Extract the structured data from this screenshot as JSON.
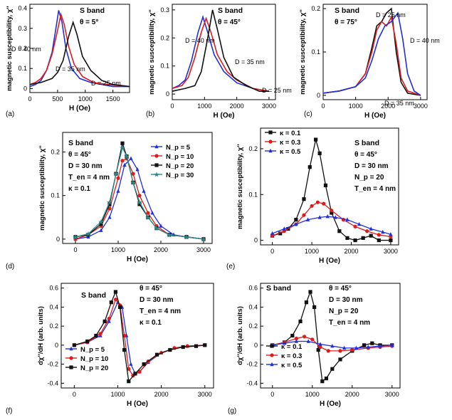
{
  "chart_data": [
    {
      "id": "a",
      "panel_label": "(a)",
      "type": "line",
      "title": "S band",
      "params": [
        "θ = 5°"
      ],
      "xlabel": "H (Oe)",
      "ylabel": "magnetic susceptibility, χ''",
      "xlim": [
        0,
        1800
      ],
      "ylim": [
        -0.02,
        0.42
      ],
      "xticks": [
        0,
        500,
        1000,
        1500
      ],
      "yticks": [
        0.0,
        0.1,
        0.2,
        0.3,
        0.4
      ],
      "annotations": [
        "D = 40 nm",
        "D = 35 nm",
        "D = 25 nm"
      ],
      "series": [
        {
          "name": "D = 40 nm",
          "color": "#1f2fe0",
          "x": [
            0,
            100,
            200,
            300,
            400,
            470,
            520,
            580,
            650,
            750,
            900,
            1100,
            1300,
            1500,
            1800
          ],
          "y": [
            0.01,
            0.02,
            0.04,
            0.09,
            0.18,
            0.3,
            0.39,
            0.33,
            0.2,
            0.1,
            0.05,
            0.03,
            0.02,
            0.01,
            0.01
          ]
        },
        {
          "name": "D = 35 nm",
          "color": "#e01b1b",
          "x": [
            0,
            100,
            200,
            300,
            400,
            500,
            560,
            620,
            700,
            800,
            950,
            1150,
            1400,
            1800
          ],
          "y": [
            0.02,
            0.03,
            0.05,
            0.09,
            0.17,
            0.29,
            0.37,
            0.32,
            0.21,
            0.12,
            0.06,
            0.03,
            0.02,
            0.01
          ]
        },
        {
          "name": "D = 25 nm",
          "color": "#111111",
          "x": [
            0,
            200,
            400,
            500,
            600,
            700,
            780,
            850,
            950,
            1100,
            1300,
            1500,
            1800
          ],
          "y": [
            0.02,
            0.03,
            0.05,
            0.08,
            0.14,
            0.26,
            0.33,
            0.27,
            0.16,
            0.09,
            0.04,
            0.02,
            0.01
          ]
        }
      ]
    },
    {
      "id": "b",
      "panel_label": "(b)",
      "type": "line",
      "title": "S band",
      "params": [
        "θ = 45°"
      ],
      "xlabel": "H (Oe)",
      "ylabel": "magnetic susceptibility, χ''",
      "xlim": [
        0,
        3200
      ],
      "ylim": [
        -0.02,
        0.32
      ],
      "xticks": [
        0,
        1000,
        2000,
        3000
      ],
      "yticks": [
        0.0,
        0.1,
        0.2,
        0.3
      ],
      "annotations": [
        "D = 40 nm",
        "D = 35 nm",
        "D = 25 nm"
      ],
      "series": [
        {
          "name": "D = 40 nm",
          "color": "#1f2fe0",
          "x": [
            0,
            200,
            400,
            600,
            800,
            950,
            1100,
            1300,
            1600,
            2000,
            2500,
            3000
          ],
          "y": [
            0.02,
            0.03,
            0.05,
            0.12,
            0.22,
            0.275,
            0.22,
            0.14,
            0.08,
            0.04,
            0.02,
            0.01
          ]
        },
        {
          "name": "D = 35 nm",
          "color": "#e01b1b",
          "x": [
            0,
            300,
            500,
            700,
            900,
            1050,
            1200,
            1400,
            1700,
            2000,
            2500,
            3000
          ],
          "y": [
            0.02,
            0.03,
            0.06,
            0.13,
            0.22,
            0.27,
            0.22,
            0.14,
            0.08,
            0.05,
            0.02,
            0.01
          ]
        },
        {
          "name": "D = 25 nm",
          "color": "#111111",
          "x": [
            0,
            400,
            700,
            900,
            1100,
            1250,
            1400,
            1600,
            1900,
            2300,
            2700,
            3000
          ],
          "y": [
            0.01,
            0.02,
            0.03,
            0.08,
            0.2,
            0.3,
            0.23,
            0.13,
            0.06,
            0.03,
            0.01,
            0.01
          ]
        }
      ]
    },
    {
      "id": "c",
      "panel_label": "(c)",
      "type": "line",
      "title": "S band",
      "params": [
        "θ = 75°"
      ],
      "xlabel": "H (Oe)",
      "ylabel": "magnetic susceptibility, χ''",
      "xlim": [
        0,
        3200
      ],
      "ylim": [
        -0.01,
        0.21
      ],
      "xticks": [
        0,
        1000,
        2000,
        3000
      ],
      "yticks": [
        0.0,
        0.1,
        0.2
      ],
      "annotations": [
        "D = 25 nm",
        "D = 40 nm",
        "D = 35 nm"
      ],
      "series": [
        {
          "name": "D = 25 nm",
          "color": "#111111",
          "x": [
            0,
            500,
            1000,
            1300,
            1500,
            1650,
            1800,
            1950,
            2100,
            2250,
            2400,
            2600,
            3000
          ],
          "y": [
            0.005,
            0.01,
            0.02,
            0.05,
            0.11,
            0.16,
            0.17,
            0.19,
            0.2,
            0.1,
            0.03,
            0.005,
            0.0
          ]
        },
        {
          "name": "D = 35 nm",
          "color": "#e01b1b",
          "x": [
            0,
            500,
            1000,
            1300,
            1500,
            1650,
            1800,
            1950,
            2100,
            2250,
            2400,
            2600,
            3000
          ],
          "y": [
            0.005,
            0.01,
            0.02,
            0.05,
            0.1,
            0.15,
            0.17,
            0.16,
            0.18,
            0.12,
            0.04,
            0.01,
            0.0
          ]
        },
        {
          "name": "D = 40 nm",
          "color": "#1f2fe0",
          "x": [
            0,
            500,
            1000,
            1300,
            1500,
            1700,
            1900,
            2100,
            2300,
            2450,
            2600,
            2800,
            3000
          ],
          "y": [
            0.005,
            0.01,
            0.02,
            0.04,
            0.08,
            0.13,
            0.16,
            0.17,
            0.19,
            0.13,
            0.05,
            0.01,
            0.0
          ]
        }
      ]
    },
    {
      "id": "d",
      "panel_label": "(d)",
      "type": "scatter",
      "title": "S band",
      "params": [
        "θ = 45°",
        "D = 30 nm",
        "T_en = 4 nm",
        "κ = 0.1"
      ],
      "xlabel": "H (Oe)",
      "ylabel": "magnetic susceptibility, χ''",
      "xlim": [
        -300,
        3200
      ],
      "ylim": [
        -0.01,
        0.245
      ],
      "xticks": [
        0,
        1000,
        2000,
        3000
      ],
      "yticks": [
        0.0,
        0.1,
        0.2
      ],
      "legend_position": "top-right",
      "series": [
        {
          "name": "N_p = 5",
          "color": "#1f2fe0",
          "marker": "triangle",
          "x": [
            0,
            300,
            600,
            800,
            1000,
            1150,
            1300,
            1450,
            1600,
            1800,
            2000,
            2300,
            2600,
            3000
          ],
          "y": [
            0.0,
            0.005,
            0.02,
            0.05,
            0.11,
            0.17,
            0.185,
            0.16,
            0.11,
            0.06,
            0.03,
            0.01,
            0.005,
            0.0
          ]
        },
        {
          "name": "N_p = 10",
          "color": "#e01b1b",
          "marker": "circle",
          "x": [
            0,
            300,
            600,
            800,
            1000,
            1100,
            1200,
            1350,
            1500,
            1700,
            1900,
            2200,
            2600,
            3000
          ],
          "y": [
            0.0,
            0.01,
            0.03,
            0.07,
            0.14,
            0.18,
            0.185,
            0.15,
            0.1,
            0.06,
            0.03,
            0.01,
            0.005,
            0.0
          ]
        },
        {
          "name": "N_p = 20",
          "color": "#111111",
          "marker": "square",
          "x": [
            0,
            300,
            600,
            800,
            950,
            1100,
            1200,
            1350,
            1500,
            1700,
            1900,
            2200,
            2600,
            3000
          ],
          "y": [
            0.005,
            0.01,
            0.035,
            0.08,
            0.15,
            0.22,
            0.19,
            0.13,
            0.08,
            0.05,
            0.025,
            0.01,
            0.005,
            0.0
          ]
        },
        {
          "name": "N_p = 30",
          "color": "#2a8a8a",
          "marker": "star",
          "x": [
            0,
            300,
            600,
            800,
            950,
            1100,
            1200,
            1350,
            1500,
            1700,
            1900,
            2200,
            2600,
            3000
          ],
          "y": [
            0.005,
            0.012,
            0.04,
            0.085,
            0.15,
            0.21,
            0.19,
            0.13,
            0.085,
            0.05,
            0.025,
            0.01,
            0.005,
            0.0
          ]
        }
      ]
    },
    {
      "id": "e",
      "panel_label": "(e)",
      "type": "scatter",
      "title": "S band",
      "params": [
        "θ = 45°",
        "D = 30 nm",
        "N_p = 20",
        "T_en = 4 nm"
      ],
      "xlabel": "H (Oe)",
      "ylabel": "magnetic susceptibility, χ''",
      "xlim": [
        -300,
        3200
      ],
      "ylim": [
        -0.01,
        0.245
      ],
      "xticks": [
        0,
        1000,
        2000,
        3000
      ],
      "yticks": [
        0.0,
        0.1,
        0.2
      ],
      "legend_position": "top-left",
      "series": [
        {
          "name": "κ = 0.1",
          "color": "#111111",
          "marker": "square",
          "x": [
            0,
            200,
            400,
            600,
            800,
            950,
            1100,
            1200,
            1350,
            1500,
            1700,
            1900,
            2100,
            2300,
            2500,
            2700,
            3000
          ],
          "y": [
            0.01,
            0.015,
            0.025,
            0.045,
            0.09,
            0.16,
            0.22,
            0.19,
            0.12,
            0.06,
            0.02,
            0.005,
            0.0,
            0.005,
            0.01,
            0.0,
            0.0
          ]
        },
        {
          "name": "κ = 0.3",
          "color": "#e01b1b",
          "marker": "circle",
          "x": [
            0,
            300,
            600,
            800,
            1000,
            1150,
            1300,
            1500,
            1800,
            2100,
            2400,
            2700,
            3000
          ],
          "y": [
            0.01,
            0.02,
            0.035,
            0.055,
            0.075,
            0.083,
            0.08,
            0.065,
            0.045,
            0.03,
            0.02,
            0.012,
            0.008
          ]
        },
        {
          "name": "κ = 0.5",
          "color": "#1f2fe0",
          "marker": "triangle",
          "x": [
            0,
            300,
            600,
            900,
            1200,
            1400,
            1600,
            1900,
            2200,
            2500,
            2800,
            3000
          ],
          "y": [
            0.015,
            0.025,
            0.035,
            0.045,
            0.05,
            0.052,
            0.05,
            0.045,
            0.035,
            0.025,
            0.018,
            0.013
          ]
        }
      ]
    },
    {
      "id": "f",
      "panel_label": "(f)",
      "type": "scatter",
      "title": "S band",
      "params": [
        "θ = 45°",
        "D = 30 nm",
        "T_en = 4 nm",
        "κ = 0.1"
      ],
      "xlabel": "H (Oe)",
      "ylabel": "dχ''/dH (arb. units)",
      "xlim": [
        -300,
        3200
      ],
      "ylim": [
        -0.45,
        0.65
      ],
      "xticks": [
        0,
        1000,
        2000,
        3000
      ],
      "yticks": [
        -0.4,
        -0.2,
        0.0,
        0.2,
        0.4,
        0.6
      ],
      "legend_position": "bottom-left",
      "series": [
        {
          "name": "N_p = 5",
          "color": "#1f2fe0",
          "marker": "triangle",
          "x": [
            0,
            300,
            600,
            800,
            1000,
            1100,
            1200,
            1300,
            1400,
            1500,
            1700,
            2000,
            2300,
            2600,
            3000
          ],
          "y": [
            0.0,
            0.03,
            0.1,
            0.25,
            0.45,
            0.4,
            0.1,
            -0.2,
            -0.3,
            -0.28,
            -0.18,
            -0.08,
            -0.03,
            -0.01,
            0.0
          ]
        },
        {
          "name": "N_p = 10",
          "color": "#e01b1b",
          "marker": "circle",
          "x": [
            0,
            300,
            600,
            800,
            950,
            1050,
            1150,
            1250,
            1350,
            1500,
            1700,
            2000,
            2300,
            2600,
            3000
          ],
          "y": [
            0.0,
            0.03,
            0.12,
            0.28,
            0.48,
            0.42,
            0.1,
            -0.25,
            -0.32,
            -0.28,
            -0.17,
            -0.08,
            -0.03,
            -0.01,
            0.0
          ]
        },
        {
          "name": "N_p = 20",
          "color": "#111111",
          "marker": "square",
          "x": [
            0,
            300,
            500,
            700,
            850,
            950,
            1050,
            1150,
            1250,
            1400,
            1600,
            1900,
            2200,
            2500,
            2800,
            3000
          ],
          "y": [
            0.0,
            0.04,
            0.1,
            0.25,
            0.45,
            0.56,
            0.4,
            -0.05,
            -0.38,
            -0.3,
            -0.2,
            -0.1,
            -0.05,
            -0.02,
            -0.01,
            0.0
          ]
        }
      ]
    },
    {
      "id": "g",
      "panel_label": "(g)",
      "type": "scatter",
      "title": "S band",
      "params": [
        "θ = 45°",
        "D = 30 nm",
        "N_p = 20",
        "T_en = 4 nm"
      ],
      "xlabel": "H (Oe)",
      "ylabel": "dχ''/dH (arb. units)",
      "xlim": [
        -300,
        3200
      ],
      "ylim": [
        -0.45,
        0.65
      ],
      "xticks": [
        0,
        1000,
        2000,
        3000
      ],
      "yticks": [
        -0.4,
        -0.2,
        0.0,
        0.2,
        0.4,
        0.6
      ],
      "legend_position": "bottom-left",
      "series": [
        {
          "name": "κ = 0.1",
          "color": "#111111",
          "marker": "square",
          "x": [
            0,
            300,
            500,
            700,
            850,
            950,
            1050,
            1150,
            1250,
            1350,
            1500,
            1700,
            2000,
            2300,
            2500,
            2700,
            3000
          ],
          "y": [
            0.0,
            0.03,
            0.1,
            0.25,
            0.45,
            0.56,
            0.4,
            -0.05,
            -0.38,
            -0.35,
            -0.25,
            -0.15,
            -0.06,
            0.0,
            0.02,
            0.0,
            0.0
          ]
        },
        {
          "name": "κ = 0.3",
          "color": "#e01b1b",
          "marker": "circle",
          "x": [
            0,
            300,
            600,
            800,
            1000,
            1200,
            1400,
            1700,
            2000,
            2400,
            2700,
            3000
          ],
          "y": [
            0.0,
            0.03,
            0.07,
            0.09,
            0.06,
            -0.02,
            -0.06,
            -0.06,
            -0.05,
            -0.03,
            -0.02,
            -0.01
          ]
        },
        {
          "name": "κ = 0.5",
          "color": "#1f2fe0",
          "marker": "triangle",
          "x": [
            0,
            300,
            600,
            900,
            1200,
            1500,
            1800,
            2100,
            2400,
            2700,
            3000
          ],
          "y": [
            0.0,
            0.02,
            0.04,
            0.04,
            0.01,
            -0.01,
            -0.03,
            -0.03,
            -0.02,
            -0.01,
            0.0
          ]
        }
      ]
    }
  ]
}
